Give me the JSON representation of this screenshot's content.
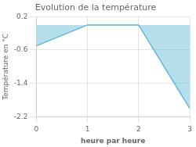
{
  "chart_data": {
    "type": "area",
    "title": "Evolution de la température",
    "xlabel": "heure par heure",
    "ylabel": "Température en °C",
    "x": [
      0,
      1,
      2,
      3
    ],
    "series": [
      {
        "name": "Température",
        "color": "#5bb8d4",
        "values": [
          -0.5,
          0.0,
          0.0,
          -2.0
        ]
      }
    ],
    "xlim": [
      0,
      3
    ],
    "ylim": [
      -2.2,
      0.2
    ],
    "xticks": [
      0,
      1,
      2,
      3
    ],
    "yticks": [
      0.2,
      -0.6,
      -1.4,
      -2.2
    ],
    "grid": true
  }
}
